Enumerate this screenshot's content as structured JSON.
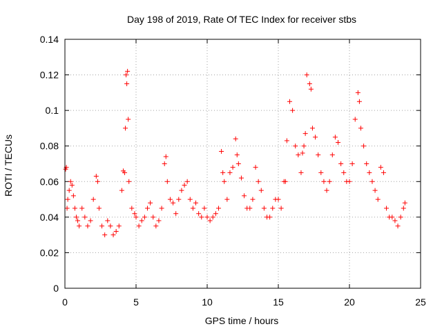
{
  "chart_data": {
    "type": "scatter",
    "title": "Day 198 of 2019, Rate Of TEC Index for receiver stbs",
    "xlabel": "GPS time / hours",
    "ylabel": "ROTI / TECUs",
    "xlim": [
      0,
      25
    ],
    "ylim": [
      0,
      0.14
    ],
    "x_ticks": [
      0,
      5,
      10,
      15,
      20,
      25
    ],
    "x_tick_labels": [
      "0",
      "5",
      "10",
      "15",
      "20",
      "25"
    ],
    "y_ticks": [
      0,
      0.02,
      0.04,
      0.06,
      0.08,
      0.1,
      0.12,
      0.14
    ],
    "y_tick_labels": [
      "0",
      "0.02",
      "0.04",
      "0.06",
      "0.08",
      "0.1",
      "0.12",
      "0.14"
    ],
    "grid": true,
    "marker": "plus",
    "series": [
      {
        "name": "stbs",
        "color": "#ff0000",
        "x": [
          0.05,
          0.1,
          0.15,
          0.2,
          0.3,
          0.4,
          0.5,
          0.6,
          0.7,
          0.8,
          0.9,
          1.0,
          1.2,
          1.4,
          1.6,
          1.8,
          2.0,
          2.2,
          2.3,
          2.4,
          2.6,
          2.8,
          3.0,
          3.2,
          3.4,
          3.6,
          3.8,
          4.0,
          4.1,
          4.2,
          4.25,
          4.3,
          4.35,
          4.4,
          4.45,
          4.5,
          4.7,
          4.9,
          5.0,
          5.2,
          5.4,
          5.6,
          5.8,
          6.0,
          6.2,
          6.4,
          6.6,
          6.8,
          7.0,
          7.1,
          7.2,
          7.4,
          7.6,
          7.8,
          8.0,
          8.2,
          8.4,
          8.6,
          8.8,
          9.0,
          9.2,
          9.4,
          9.6,
          9.8,
          10.0,
          10.2,
          10.4,
          10.6,
          10.8,
          11.0,
          11.1,
          11.2,
          11.4,
          11.6,
          11.8,
          12.0,
          12.1,
          12.2,
          12.4,
          12.6,
          12.8,
          13.0,
          13.2,
          13.4,
          13.6,
          13.8,
          14.0,
          14.2,
          14.4,
          14.6,
          14.8,
          15.0,
          15.2,
          15.4,
          15.5,
          15.6,
          15.8,
          16.0,
          16.2,
          16.4,
          16.6,
          16.7,
          16.8,
          16.9,
          17.0,
          17.2,
          17.3,
          17.4,
          17.6,
          17.8,
          18.0,
          18.2,
          18.4,
          18.6,
          18.8,
          19.0,
          19.2,
          19.4,
          19.6,
          19.8,
          20.0,
          20.2,
          20.4,
          20.6,
          20.7,
          20.8,
          21.0,
          21.2,
          21.4,
          21.6,
          21.8,
          22.0,
          22.2,
          22.4,
          22.6,
          22.8,
          23.0,
          23.2,
          23.4,
          23.6,
          23.8,
          23.9
        ],
        "y": [
          0.067,
          0.068,
          0.045,
          0.05,
          0.055,
          0.06,
          0.058,
          0.052,
          0.045,
          0.04,
          0.038,
          0.035,
          0.045,
          0.04,
          0.035,
          0.038,
          0.05,
          0.063,
          0.06,
          0.045,
          0.035,
          0.03,
          0.038,
          0.035,
          0.03,
          0.032,
          0.035,
          0.055,
          0.066,
          0.065,
          0.09,
          0.12,
          0.115,
          0.122,
          0.095,
          0.06,
          0.045,
          0.042,
          0.04,
          0.035,
          0.038,
          0.04,
          0.045,
          0.048,
          0.04,
          0.035,
          0.038,
          0.045,
          0.07,
          0.074,
          0.06,
          0.05,
          0.048,
          0.042,
          0.05,
          0.055,
          0.058,
          0.06,
          0.05,
          0.045,
          0.048,
          0.042,
          0.04,
          0.045,
          0.04,
          0.038,
          0.04,
          0.042,
          0.045,
          0.077,
          0.065,
          0.06,
          0.05,
          0.065,
          0.068,
          0.084,
          0.075,
          0.07,
          0.062,
          0.052,
          0.045,
          0.045,
          0.05,
          0.068,
          0.06,
          0.055,
          0.045,
          0.04,
          0.04,
          0.045,
          0.05,
          0.05,
          0.045,
          0.06,
          0.06,
          0.083,
          0.105,
          0.1,
          0.08,
          0.075,
          0.065,
          0.076,
          0.08,
          0.087,
          0.12,
          0.115,
          0.112,
          0.09,
          0.085,
          0.075,
          0.065,
          0.06,
          0.055,
          0.06,
          0.075,
          0.085,
          0.082,
          0.07,
          0.065,
          0.06,
          0.06,
          0.07,
          0.095,
          0.11,
          0.105,
          0.09,
          0.08,
          0.07,
          0.065,
          0.06,
          0.055,
          0.05,
          0.068,
          0.065,
          0.045,
          0.04,
          0.04,
          0.038,
          0.035,
          0.04,
          0.045,
          0.048
        ]
      }
    ]
  }
}
